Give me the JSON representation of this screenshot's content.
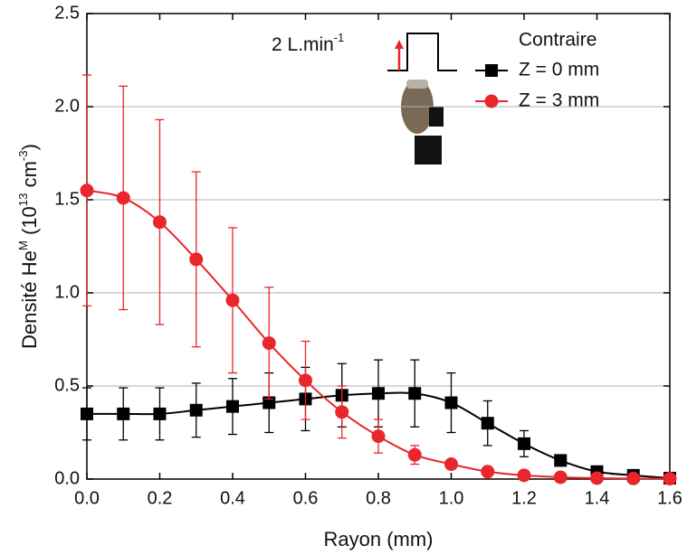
{
  "chart_data": {
    "type": "line",
    "xlabel": "Rayon (mm)",
    "ylabel": [
      {
        "text": "Densité He"
      },
      {
        "text": "M",
        "sup": true
      },
      {
        "text": " (10"
      },
      {
        "text": "13",
        "sup": true
      },
      {
        "text": " cm"
      },
      {
        "text": "-3",
        "sup": true
      },
      {
        "text": ")"
      }
    ],
    "annotation": [
      {
        "text": "2 L.min"
      },
      {
        "text": "-1",
        "sup": true
      }
    ],
    "legend_title": "Contraire",
    "legend": "upper right",
    "grid": true,
    "xlim": [
      0,
      1.6
    ],
    "ylim": [
      0,
      2.5
    ],
    "xticks": [
      {
        "value": 0,
        "label": "0.0"
      },
      {
        "value": 0.2,
        "label": "0.2"
      },
      {
        "value": 0.4,
        "label": "0.4"
      },
      {
        "value": 0.6,
        "label": "0.6"
      },
      {
        "value": 0.8,
        "label": "0.8"
      },
      {
        "value": 1,
        "label": "1.0"
      },
      {
        "value": 1.2,
        "label": "1.2"
      },
      {
        "value": 1.4,
        "label": "1.4"
      },
      {
        "value": 1.6,
        "label": "1.6"
      }
    ],
    "yticks": [
      {
        "value": 0,
        "label": "0.0"
      },
      {
        "value": 0.5,
        "label": "0.5"
      },
      {
        "value": 1,
        "label": "1.0"
      },
      {
        "value": 1.5,
        "label": "1.5"
      },
      {
        "value": 2,
        "label": "2.0"
      },
      {
        "value": 2.5,
        "label": "2.5"
      }
    ],
    "x": [
      0,
      0.1,
      0.2,
      0.3,
      0.4,
      0.5,
      0.6,
      0.7,
      0.8,
      0.9,
      1.0,
      1.1,
      1.2,
      1.3,
      1.4,
      1.5,
      1.6
    ],
    "series": [
      {
        "name": "Z = 0 mm",
        "color": "#000000",
        "marker": "square",
        "values": [
          0.35,
          0.35,
          0.35,
          0.37,
          0.39,
          0.41,
          0.43,
          0.45,
          0.46,
          0.46,
          0.41,
          0.3,
          0.19,
          0.1,
          0.04,
          0.02,
          0.005
        ],
        "errors": [
          0.14,
          0.14,
          0.14,
          0.145,
          0.15,
          0.16,
          0.17,
          0.17,
          0.18,
          0.18,
          0.16,
          0.12,
          0.07,
          0.03,
          0.01,
          0.005,
          0
        ]
      },
      {
        "name": "Z = 3 mm",
        "color": "#e8262b",
        "marker": "circle",
        "values": [
          1.55,
          1.51,
          1.38,
          1.18,
          0.96,
          0.73,
          0.53,
          0.36,
          0.23,
          0.13,
          0.08,
          0.04,
          0.02,
          0.01,
          0.005,
          0.003,
          0.002
        ],
        "errors": [
          0.62,
          0.6,
          0.55,
          0.47,
          0.39,
          0.3,
          0.21,
          0.14,
          0.09,
          0.05,
          0.02,
          0.01,
          0.01,
          0,
          0,
          0,
          0
        ]
      }
    ]
  }
}
